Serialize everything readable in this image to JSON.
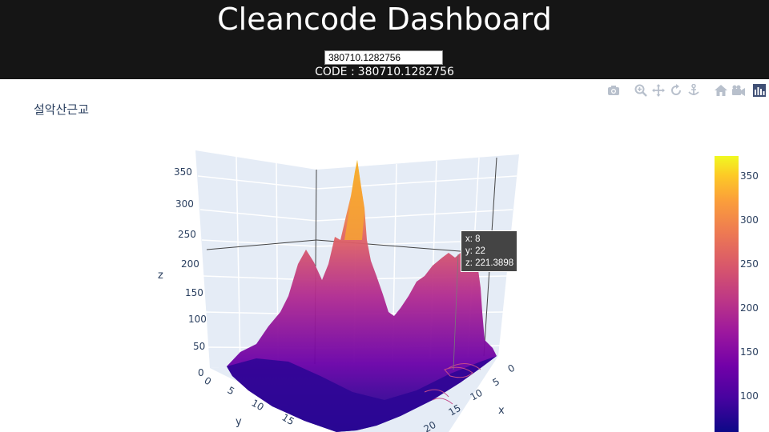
{
  "header": {
    "title": "Cleancode Dashboard",
    "code_input_value": "380710.1282756",
    "code_label_prefix": "CODE :",
    "code_label_value": "380710.1282756"
  },
  "modebar": {
    "icons": [
      "camera-icon",
      "zoom-icon",
      "pan-icon",
      "orbit-icon",
      "turntable-icon",
      "home-icon",
      "camera-view-icon",
      "plotly-logo-icon"
    ]
  },
  "plot": {
    "title": "설악산근교",
    "type": "surface-3d",
    "axes": {
      "x": {
        "title": "x",
        "ticks": [
          "0",
          "5",
          "10",
          "15",
          "20"
        ]
      },
      "y": {
        "title": "y",
        "ticks": [
          "0",
          "5",
          "10",
          "15"
        ]
      },
      "z": {
        "title": "z",
        "ticks": [
          "0",
          "50",
          "100",
          "150",
          "200",
          "250",
          "300",
          "350"
        ]
      }
    },
    "colorscale": "plasma",
    "colorbar_ticks": [
      "100",
      "150",
      "200",
      "250",
      "300",
      "350"
    ],
    "hover": {
      "x_label": "x: 8",
      "y_label": "y: 22",
      "z_label": "z: 221.3898"
    }
  }
}
